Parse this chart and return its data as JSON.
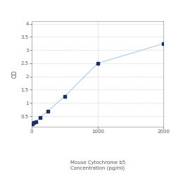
{
  "x": [
    0,
    15.625,
    31.25,
    62.5,
    125,
    250,
    500,
    1000,
    2000
  ],
  "y": [
    0.2,
    0.22,
    0.25,
    0.3,
    0.45,
    0.7,
    1.25,
    2.5,
    3.25
  ],
  "line_color": "#aacce8",
  "marker_color": "#1a3060",
  "marker_size": 3.0,
  "marker_style": "s",
  "xlabel_line1": "Mouse Cytochrome b5",
  "xlabel_line2": "Concentration (pg/ml)",
  "xlabel_tick": "1000",
  "ylabel": "OD",
  "xlim": [
    0,
    2000
  ],
  "ylim": [
    0.1,
    4.1
  ],
  "yticks": [
    0.5,
    1.0,
    1.5,
    2.0,
    2.5,
    3.0,
    3.5,
    4.0
  ],
  "xticks": [
    0,
    1000,
    2000
  ],
  "grid_color": "#cccccc",
  "grid_style": "--",
  "grid_alpha": 0.8,
  "bg_color": "#ffffff",
  "xlabel_fontsize": 5.0,
  "ylabel_fontsize": 5.5,
  "tick_fontsize": 5.0,
  "fig_bg_color": "#ffffff",
  "spine_color": "#999999"
}
